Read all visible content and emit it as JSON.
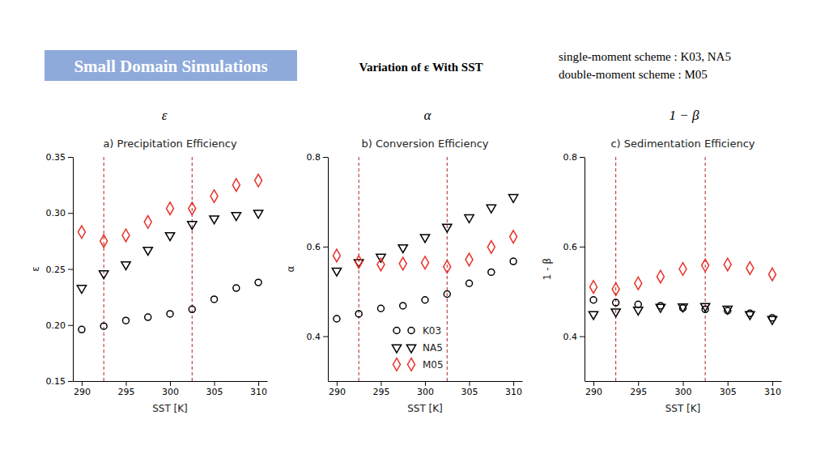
{
  "header": {
    "box_title": "Small Domain Simulations",
    "title": "Variation of ε With SST",
    "notes": [
      "single-moment scheme : K03, NA5",
      "double-moment scheme : M05"
    ],
    "column_labels": [
      "ε",
      "α",
      "1 − β"
    ]
  },
  "chart_data": [
    {
      "type": "scatter",
      "title": "a) Precipitation Efficiency",
      "xlabel": "SST [K]",
      "ylabel": "ε",
      "x": [
        290,
        292.5,
        295,
        297.5,
        300,
        302.5,
        305,
        307.5,
        310
      ],
      "xlim": [
        289,
        311
      ],
      "xticks": [
        290,
        295,
        300,
        305,
        310
      ],
      "ylim": [
        0.15,
        0.35
      ],
      "yticks": [
        0.15,
        {
          "value": 0.2,
          "label": "0.20"
        },
        0.25,
        {
          "value": 0.3,
          "label": "0.30"
        },
        0.35
      ],
      "vlines": [
        292.5,
        302.5
      ],
      "legend": false,
      "series": [
        {
          "name": "K03",
          "color": "#000000",
          "marker": "circle",
          "values": [
            0.196,
            0.199,
            0.204,
            0.207,
            0.21,
            0.214,
            0.223,
            0.233,
            0.238
          ]
        },
        {
          "name": "NA5",
          "color": "#000000",
          "marker": "triangle-down",
          "values": [
            0.233,
            0.246,
            0.254,
            0.267,
            0.28,
            0.29,
            0.295,
            0.298,
            0.3
          ]
        },
        {
          "name": "M05",
          "color": "#e8312a",
          "marker": "diamond",
          "values": [
            0.283,
            0.275,
            0.28,
            0.292,
            0.304,
            0.304,
            0.315,
            0.325,
            0.329
          ]
        }
      ]
    },
    {
      "type": "scatter",
      "title": "b) Conversion Efficiency",
      "xlabel": "SST [K]",
      "ylabel": "α",
      "x": [
        290,
        292.5,
        295,
        297.5,
        300,
        302.5,
        305,
        307.5,
        310
      ],
      "xlim": [
        289,
        311
      ],
      "xticks": [
        290,
        295,
        300,
        305,
        310
      ],
      "ylim": [
        0.3,
        0.8
      ],
      "yticks": [
        0.4,
        0.6,
        0.8
      ],
      "vlines": [
        292.5,
        302.5
      ],
      "legend": "lower center",
      "series": [
        {
          "name": "K03",
          "color": "#000000",
          "marker": "circle",
          "values": [
            0.439,
            0.45,
            0.462,
            0.468,
            0.481,
            0.494,
            0.518,
            0.543,
            0.567
          ]
        },
        {
          "name": "NA5",
          "color": "#000000",
          "marker": "triangle-down",
          "values": [
            0.546,
            0.565,
            0.577,
            0.598,
            0.621,
            0.644,
            0.665,
            0.687,
            0.71
          ]
        },
        {
          "name": "M05",
          "color": "#e8312a",
          "marker": "diamond",
          "values": [
            0.58,
            0.566,
            0.56,
            0.562,
            0.564,
            0.555,
            0.571,
            0.599,
            0.622
          ]
        }
      ]
    },
    {
      "type": "scatter",
      "title": "c) Sedimentation Efficiency",
      "xlabel": "SST [K]",
      "ylabel": "1 - β",
      "x": [
        290,
        292.5,
        295,
        297.5,
        300,
        302.5,
        305,
        307.5,
        310
      ],
      "xlim": [
        289,
        311
      ],
      "xticks": [
        290,
        295,
        300,
        305,
        310
      ],
      "ylim": [
        0.3,
        0.8
      ],
      "yticks": [
        0.4,
        0.6,
        0.8
      ],
      "vlines": [
        292.5,
        302.5
      ],
      "legend": false,
      "series": [
        {
          "name": "K03",
          "color": "#000000",
          "marker": "circle",
          "values": [
            0.481,
            0.475,
            0.471,
            0.468,
            0.463,
            0.46,
            0.457,
            0.451,
            0.441
          ]
        },
        {
          "name": "NA5",
          "color": "#000000",
          "marker": "triangle-down",
          "values": [
            0.449,
            0.455,
            0.459,
            0.465,
            0.466,
            0.467,
            0.461,
            0.449,
            0.438
          ]
        },
        {
          "name": "M05",
          "color": "#e8312a",
          "marker": "diamond",
          "values": [
            0.51,
            0.505,
            0.518,
            0.533,
            0.55,
            0.558,
            0.56,
            0.552,
            0.538
          ]
        }
      ]
    }
  ]
}
